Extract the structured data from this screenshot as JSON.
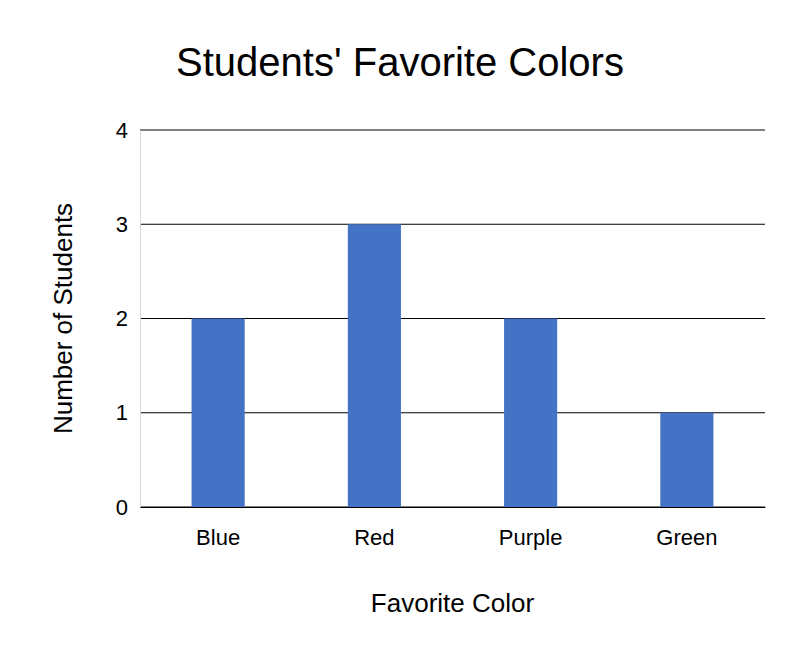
{
  "chart_data": {
    "type": "bar",
    "title": "Students' Favorite Colors",
    "x_label": "Favorite Color",
    "y_label": "Number of Students",
    "categories": [
      "Blue",
      "Red",
      "Purple",
      "Green"
    ],
    "values": [
      2,
      3,
      2,
      1
    ],
    "color": "#4472c4",
    "ylim": [
      0,
      4
    ],
    "yticks": [
      0,
      1,
      2,
      3,
      4
    ],
    "grid": true
  }
}
